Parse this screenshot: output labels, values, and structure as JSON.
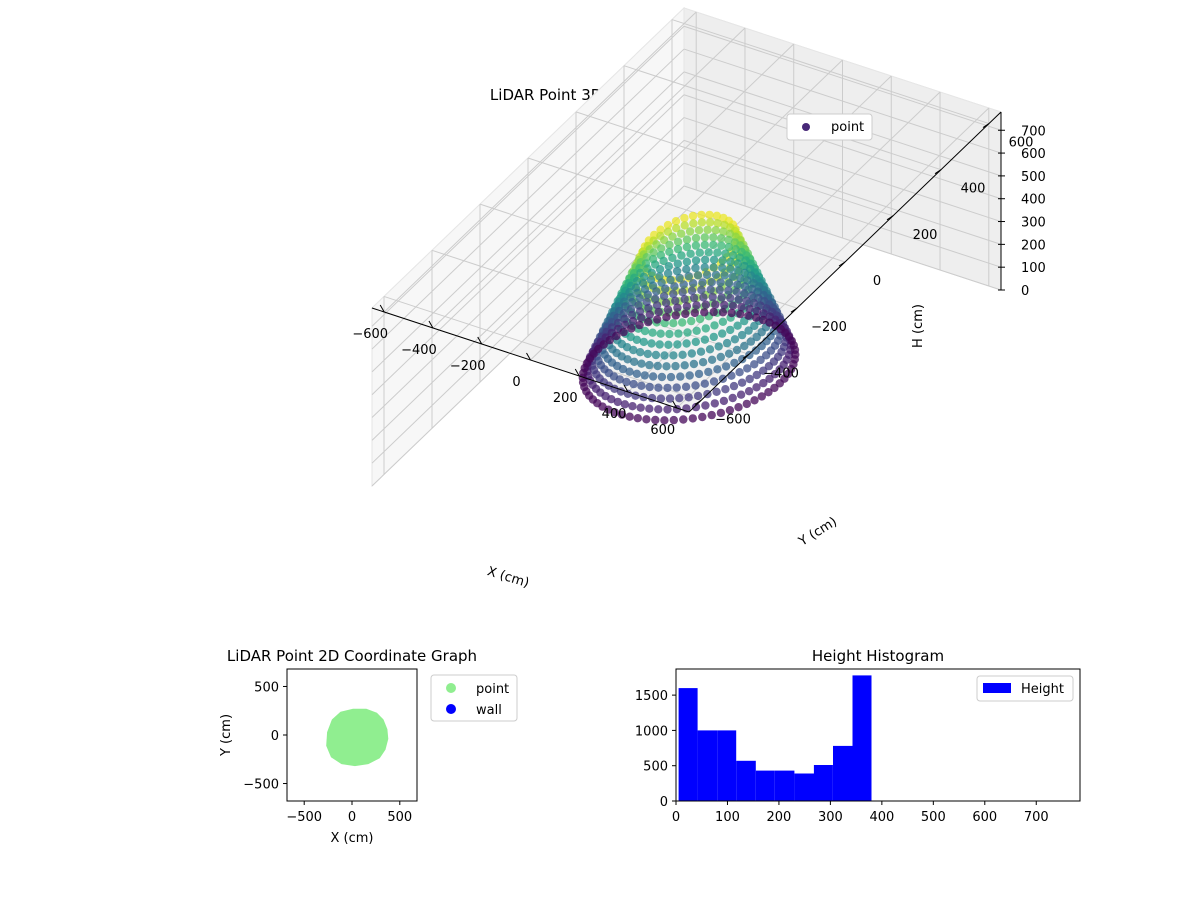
{
  "chart_data": [
    {
      "type": "scatter",
      "projection": "3d",
      "title": "LiDAR Point 3D Coordinate Graph",
      "xlabel": "X (cm)",
      "ylabel": "Y (cm)",
      "zlabel": "H (cm)",
      "xlim": [
        -650,
        650
      ],
      "ylim": [
        -650,
        650
      ],
      "zlim": [
        780,
        0
      ],
      "xticks": [
        "−600",
        "−400",
        "−200",
        "0",
        "200",
        "400",
        "600"
      ],
      "yticks": [
        "−600",
        "−400",
        "−200",
        "0",
        "200",
        "400",
        "600"
      ],
      "zticks": [
        "0",
        "100",
        "200",
        "300",
        "400",
        "500",
        "600",
        "700"
      ],
      "grid": true,
      "legend": {
        "position": "top-right",
        "entries": [
          {
            "label": "point",
            "color": "#482878"
          }
        ]
      },
      "colormap": "viridis",
      "series": [
        {
          "name": "point",
          "description": "approx. 8000 points forming a tilted bowl; low H (purple) ring at rim, high H (green-yellow) at bottom",
          "x": [
            -220,
            -150,
            -80,
            0,
            80,
            160,
            230,
            260,
            230,
            160,
            80,
            0,
            -80,
            -160,
            -220,
            -120,
            0,
            120,
            200,
            120,
            0,
            -120,
            -60,
            60,
            0
          ],
          "y": [
            0,
            130,
            200,
            230,
            200,
            130,
            0,
            -80,
            -160,
            -220,
            -260,
            -270,
            -240,
            -180,
            -100,
            0,
            80,
            0,
            -40,
            -120,
            -150,
            -100,
            0,
            20,
            -60
          ],
          "h": [
            150,
            120,
            110,
            120,
            140,
            170,
            200,
            230,
            260,
            290,
            320,
            340,
            300,
            250,
            200,
            420,
            450,
            470,
            480,
            500,
            560,
            580,
            620,
            640,
            660
          ]
        }
      ]
    },
    {
      "type": "scatter",
      "title": "LiDAR Point 2D Coordinate Graph",
      "xlabel": "X (cm)",
      "ylabel": "Y (cm)",
      "xlim": [
        -680,
        680
      ],
      "ylim": [
        -680,
        680
      ],
      "xticks": [
        "−500",
        "0",
        "500"
      ],
      "yticks": [
        "500",
        "0",
        "−500"
      ],
      "legend": {
        "position": "outside-right",
        "entries": [
          {
            "label": "point",
            "color": "#90ee90"
          },
          {
            "label": "wall",
            "color": "#0000ff"
          }
        ]
      },
      "series": [
        {
          "name": "point",
          "color": "#90ee90",
          "outline": [
            [
              150,
              270
            ],
            [
              260,
              230
            ],
            [
              330,
              160
            ],
            [
              370,
              60
            ],
            [
              380,
              -40
            ],
            [
              350,
              -150
            ],
            [
              290,
              -240
            ],
            [
              170,
              -300
            ],
            [
              30,
              -320
            ],
            [
              -110,
              -300
            ],
            [
              -220,
              -230
            ],
            [
              -270,
              -110
            ],
            [
              -260,
              30
            ],
            [
              -210,
              160
            ],
            [
              -120,
              240
            ],
            [
              10,
              270
            ]
          ]
        },
        {
          "name": "wall",
          "color": "#0000ff",
          "x": [],
          "y": []
        }
      ]
    },
    {
      "type": "bar",
      "subtype": "histogram",
      "title": "Height Histogram",
      "xlabel": "",
      "ylabel": "",
      "xlim": [
        0,
        785
      ],
      "ylim": [
        0,
        1870
      ],
      "xticks": [
        "0",
        "100",
        "200",
        "300",
        "400",
        "500",
        "600",
        "700"
      ],
      "yticks": [
        "0",
        "500",
        "1000",
        "1500"
      ],
      "legend": {
        "position": "top-right",
        "entries": [
          {
            "label": "Height",
            "color": "#0000ff"
          }
        ]
      },
      "series": [
        {
          "name": "Height",
          "color": "#0000ff",
          "bin_edges": [
            5,
            42,
            80,
            117,
            155,
            192,
            230,
            268,
            305,
            343,
            380
          ],
          "values": [
            1600,
            1000,
            1000,
            570,
            430,
            430,
            390,
            510,
            780,
            1780
          ]
        }
      ]
    }
  ]
}
